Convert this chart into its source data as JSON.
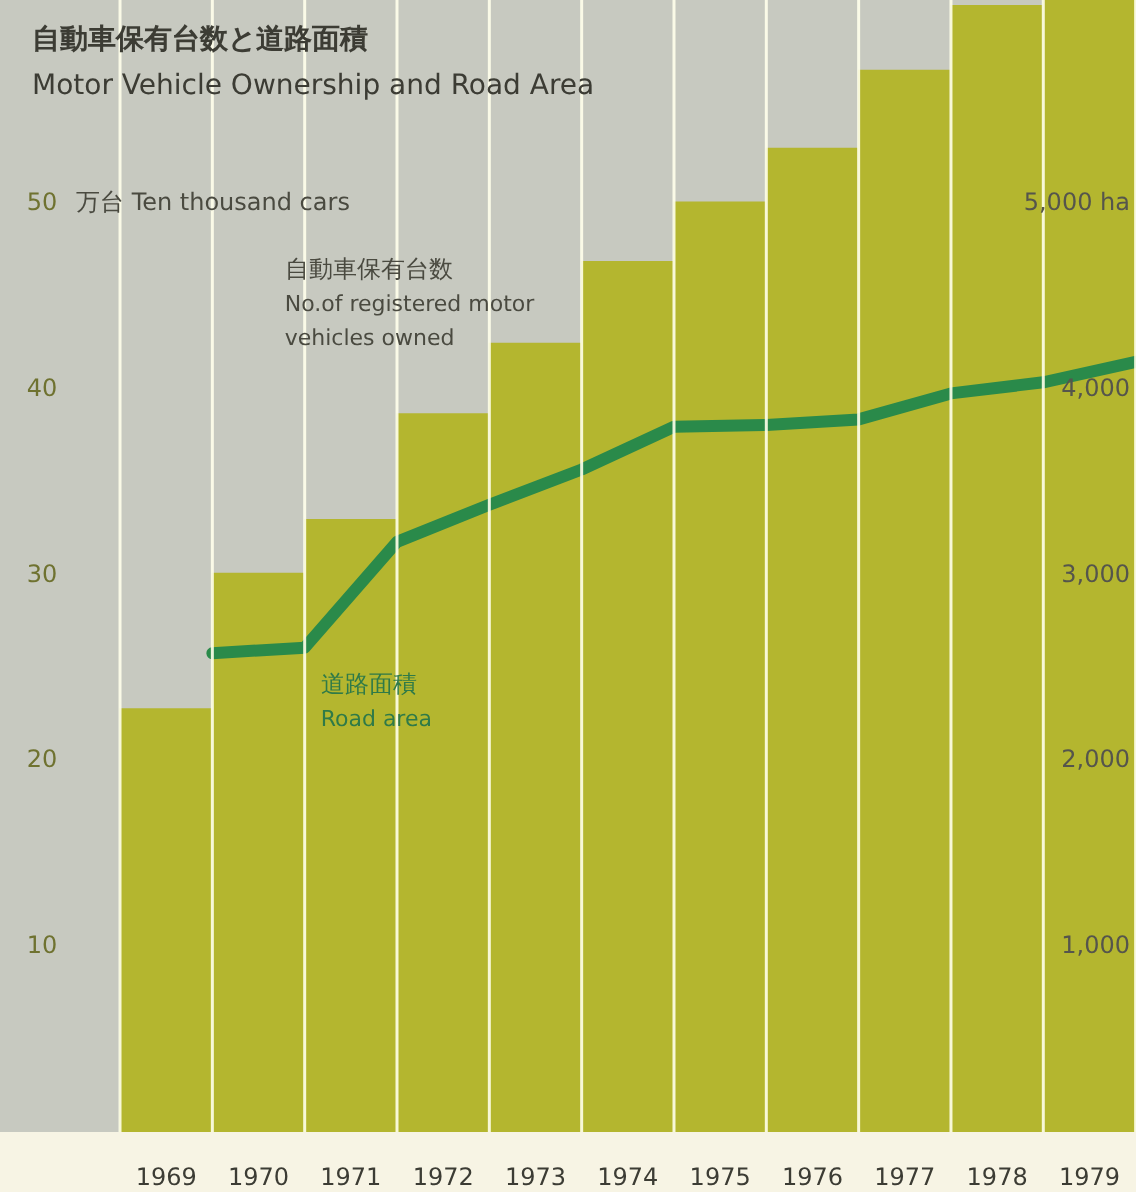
{
  "chart_data": {
    "type": "bar",
    "title": "自動車保有台数と道路面積",
    "subtitle": "Motor Vehicle Ownership and Road Area",
    "ylabel": "万台 Ten thousand cars",
    "x": [
      1969,
      1970,
      1971,
      1972,
      1973,
      1974,
      1975,
      1976,
      1977,
      1978,
      1979
    ],
    "series": [
      {
        "name": "自動車保有台数\nNo.of registered motor\nvehicles owned",
        "color": "#b4b62f",
        "values": [
          22.8,
          30.1,
          33.0,
          38.7,
          42.5,
          46.9,
          50.1,
          53.0,
          57.2,
          60.7,
          61
        ]
      },
      {
        "type": "line",
        "axis": "y2",
        "name": "道路面積\nRoad area",
        "color": "#2a8a4a",
        "x": [
          1969.5,
          1970.5,
          1971.5,
          1972.5,
          1973.5,
          1974.5,
          1975.5,
          1976.5,
          1977.5,
          1978.5,
          1979.5
        ],
        "values": [
          2580,
          2610,
          3180,
          3380,
          3570,
          3800,
          3810,
          3840,
          3980,
          4040,
          4150
        ]
      }
    ],
    "xlim": [
      1967.2,
      1979.5
    ],
    "xticks": [
      1969,
      1970,
      1971,
      1972,
      1973,
      1974,
      1975,
      1976,
      1977,
      1978,
      1979
    ],
    "ylim": [
      0,
      61
    ],
    "yticks": [
      10,
      20,
      30,
      40,
      50
    ],
    "y2lim": [
      0,
      6100
    ],
    "y2ticks": [
      {
        "value": 1000,
        "label": "1,000"
      },
      {
        "value": 2000,
        "label": "2,000"
      },
      {
        "value": 3000,
        "label": "3,000"
      },
      {
        "value": 4000,
        "label": "4,000"
      },
      {
        "value": 5000,
        "label": "5,000 ha"
      }
    ],
    "grid": "x"
  }
}
